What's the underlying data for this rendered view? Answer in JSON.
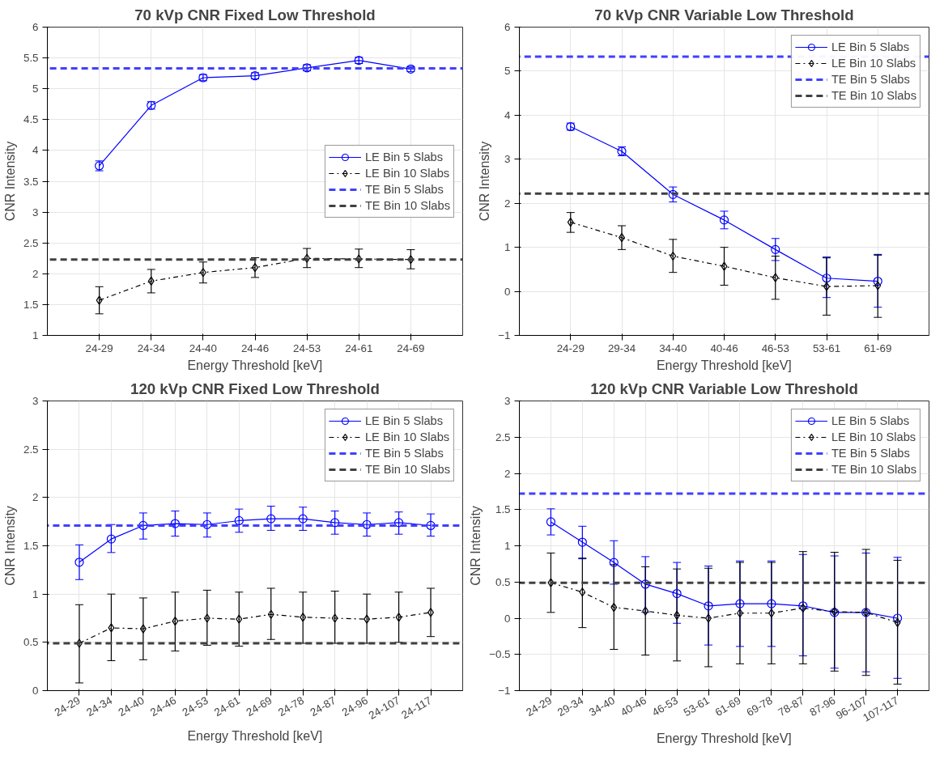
{
  "chart_data": [
    {
      "type": "line",
      "title": "70 kVp CNR Fixed Low Threshold",
      "xlabel": "Energy Threshold [keV]",
      "ylabel": "CNR Intensity",
      "categories": [
        "24-29",
        "24-34",
        "24-40",
        "24-46",
        "24-53",
        "24-61",
        "24-69"
      ],
      "series": [
        {
          "name": "LE Bin 5 Slabs",
          "color": "#0000ff",
          "marker": "circle",
          "line_style": "solid",
          "values": [
            3.75,
            4.73,
            5.18,
            5.21,
            5.34,
            5.46,
            5.32
          ],
          "errors": [
            [
              3.67,
              3.83
            ],
            [
              4.67,
              4.79
            ],
            [
              5.13,
              5.23
            ],
            [
              5.16,
              5.26
            ],
            [
              5.29,
              5.39
            ],
            [
              5.41,
              5.51
            ],
            [
              5.28,
              5.36
            ]
          ]
        },
        {
          "name": "LE Bin 10 Slabs",
          "color": "#000000",
          "marker": "diamond",
          "line_style": "dashdot",
          "values": [
            1.57,
            1.88,
            2.02,
            2.1,
            2.25,
            2.24,
            2.23
          ],
          "errors": [
            [
              1.35,
              1.79
            ],
            [
              1.69,
              2.07
            ],
            [
              1.85,
              2.19
            ],
            [
              1.94,
              2.26
            ],
            [
              2.1,
              2.41
            ],
            [
              2.1,
              2.4
            ],
            [
              2.08,
              2.39
            ]
          ]
        }
      ],
      "ref_lines": [
        {
          "axis": "y",
          "value": 5.33,
          "label": "TE Bin 5 Slabs",
          "color": "#4040ff",
          "line_style": "dashed"
        },
        {
          "axis": "y",
          "value": 2.23,
          "label": "TE Bin 10 Slabs",
          "color": "#404040",
          "line_style": "dashed"
        }
      ],
      "ylim": [
        1,
        6
      ],
      "yticks": [
        1,
        1.5,
        2,
        2.5,
        3,
        3.5,
        4,
        4.5,
        5,
        5.5,
        6
      ],
      "grid": true,
      "legend": "right"
    },
    {
      "type": "line",
      "title": "70 kVp CNR Variable Low Threshold",
      "xlabel": "Energy Threshold [keV]",
      "ylabel": "CNR Intensity",
      "categories": [
        "24-29",
        "29-34",
        "34-40",
        "40-46",
        "46-53",
        "53-61",
        "61-69"
      ],
      "series": [
        {
          "name": "LE Bin 5 Slabs",
          "color": "#0000ff",
          "marker": "circle",
          "line_style": "solid",
          "values": [
            3.74,
            3.18,
            2.2,
            1.62,
            0.95,
            0.3,
            0.23
          ],
          "errors": [
            [
              3.66,
              3.82
            ],
            [
              3.08,
              3.28
            ],
            [
              2.03,
              2.37
            ],
            [
              1.42,
              1.82
            ],
            [
              0.7,
              1.2
            ],
            [
              -0.14,
              0.78
            ],
            [
              -0.36,
              0.82
            ]
          ]
        },
        {
          "name": "LE Bin 10 Slabs",
          "color": "#000000",
          "marker": "diamond",
          "line_style": "dashdot",
          "values": [
            1.57,
            1.22,
            0.8,
            0.57,
            0.31,
            0.11,
            0.13
          ],
          "errors": [
            [
              1.34,
              1.79
            ],
            [
              0.95,
              1.49
            ],
            [
              0.43,
              1.18
            ],
            [
              0.14,
              1.0
            ],
            [
              -0.18,
              0.8
            ],
            [
              -0.54,
              0.76
            ],
            [
              -0.59,
              0.84
            ]
          ]
        }
      ],
      "ref_lines": [
        {
          "axis": "y",
          "value": 5.33,
          "label": "TE Bin 5 Slabs",
          "color": "#4040ff",
          "line_style": "dashed"
        },
        {
          "axis": "y",
          "value": 2.22,
          "label": "TE Bin 10 Slabs",
          "color": "#404040",
          "line_style": "dashed"
        }
      ],
      "ylim": [
        -1,
        6
      ],
      "yticks": [
        -1,
        0,
        1,
        2,
        3,
        4,
        5,
        6
      ],
      "grid": true,
      "legend": "top right"
    },
    {
      "type": "line",
      "title": "120 kVp CNR Fixed Low Threshold",
      "xlabel": "Energy Threshold [keV]",
      "ylabel": "CNR Intensity",
      "categories": [
        "24-29",
        "24-34",
        "24-40",
        "24-46",
        "24-53",
        "24-61",
        "24-69",
        "24-78",
        "24-87",
        "24-96",
        "24-107",
        "24-117"
      ],
      "series": [
        {
          "name": "LE Bin 5 Slabs",
          "color": "#0000ff",
          "marker": "circle",
          "line_style": "solid",
          "values": [
            1.33,
            1.57,
            1.71,
            1.73,
            1.72,
            1.76,
            1.78,
            1.78,
            1.74,
            1.72,
            1.74,
            1.71
          ],
          "errors": [
            [
              1.15,
              1.51
            ],
            [
              1.43,
              1.72
            ],
            [
              1.57,
              1.84
            ],
            [
              1.6,
              1.86
            ],
            [
              1.59,
              1.84
            ],
            [
              1.64,
              1.88
            ],
            [
              1.66,
              1.91
            ],
            [
              1.66,
              1.9
            ],
            [
              1.62,
              1.86
            ],
            [
              1.6,
              1.84
            ],
            [
              1.62,
              1.85
            ],
            [
              1.6,
              1.83
            ]
          ]
        },
        {
          "name": "LE Bin 10 Slabs",
          "color": "#000000",
          "marker": "diamond",
          "line_style": "dashdot",
          "values": [
            0.49,
            0.65,
            0.64,
            0.72,
            0.75,
            0.74,
            0.79,
            0.76,
            0.75,
            0.74,
            0.76,
            0.81
          ],
          "errors": [
            [
              0.08,
              0.89
            ],
            [
              0.31,
              1.0
            ],
            [
              0.32,
              0.96
            ],
            [
              0.41,
              1.02
            ],
            [
              0.47,
              1.04
            ],
            [
              0.46,
              1.02
            ],
            [
              0.53,
              1.06
            ],
            [
              0.49,
              1.02
            ],
            [
              0.49,
              1.03
            ],
            [
              0.49,
              1.0
            ],
            [
              0.5,
              1.02
            ],
            [
              0.56,
              1.06
            ]
          ]
        }
      ],
      "ref_lines": [
        {
          "axis": "y",
          "value": 1.71,
          "label": "TE Bin 5 Slabs",
          "color": "#4040ff",
          "line_style": "dashed"
        },
        {
          "axis": "y",
          "value": 0.49,
          "label": "TE Bin 10 Slabs",
          "color": "#404040",
          "line_style": "dashed"
        }
      ],
      "ylim": [
        0,
        3
      ],
      "yticks": [
        0,
        0.5,
        1,
        1.5,
        2,
        2.5,
        3
      ],
      "grid": true,
      "legend": "top right"
    },
    {
      "type": "line",
      "title": "120 kVp CNR Variable Low Threshold",
      "xlabel": "Energy Threshold [keV]",
      "ylabel": "CNR Intensity",
      "categories": [
        "24-29",
        "29-34",
        "34-40",
        "40-46",
        "46-53",
        "53-61",
        "61-69",
        "69-78",
        "78-87",
        "87-96",
        "96-107",
        "107-117"
      ],
      "series": [
        {
          "name": "LE Bin 5 Slabs",
          "color": "#0000ff",
          "marker": "circle",
          "line_style": "solid",
          "values": [
            1.33,
            1.05,
            0.77,
            0.47,
            0.34,
            0.17,
            0.2,
            0.2,
            0.17,
            0.08,
            0.08,
            0.0
          ],
          "errors": [
            [
              1.15,
              1.51
            ],
            [
              0.82,
              1.27
            ],
            [
              0.47,
              1.07
            ],
            [
              0.08,
              0.85
            ],
            [
              -0.07,
              0.77
            ],
            [
              -0.37,
              0.72
            ],
            [
              -0.39,
              0.79
            ],
            [
              -0.39,
              0.79
            ],
            [
              -0.52,
              0.88
            ],
            [
              -0.69,
              0.86
            ],
            [
              -0.74,
              0.9
            ],
            [
              -0.83,
              0.84
            ]
          ]
        },
        {
          "name": "LE Bin 10 Slabs",
          "color": "#000000",
          "marker": "diamond",
          "line_style": "dashdot",
          "values": [
            0.49,
            0.36,
            0.15,
            0.1,
            0.04,
            0.0,
            0.07,
            0.07,
            0.14,
            0.09,
            0.08,
            -0.06
          ],
          "errors": [
            [
              0.08,
              0.9
            ],
            [
              -0.13,
              0.83
            ],
            [
              -0.43,
              0.74
            ],
            [
              -0.51,
              0.71
            ],
            [
              -0.59,
              0.68
            ],
            [
              -0.67,
              0.69
            ],
            [
              -0.63,
              0.77
            ],
            [
              -0.63,
              0.77
            ],
            [
              -0.63,
              0.92
            ],
            [
              -0.73,
              0.91
            ],
            [
              -0.79,
              0.95
            ],
            [
              -0.91,
              0.8
            ]
          ]
        }
      ],
      "ref_lines": [
        {
          "axis": "y",
          "value": 1.72,
          "label": "TE Bin 5 Slabs",
          "color": "#4040ff",
          "line_style": "dashed"
        },
        {
          "axis": "y",
          "value": 0.49,
          "label": "TE Bin 10 Slabs",
          "color": "#404040",
          "line_style": "dashed"
        }
      ],
      "ylim": [
        -1,
        3
      ],
      "yticks": [
        -1,
        -0.5,
        0,
        0.5,
        1,
        1.5,
        2,
        2.5,
        3
      ],
      "grid": true,
      "legend": "top right"
    }
  ]
}
